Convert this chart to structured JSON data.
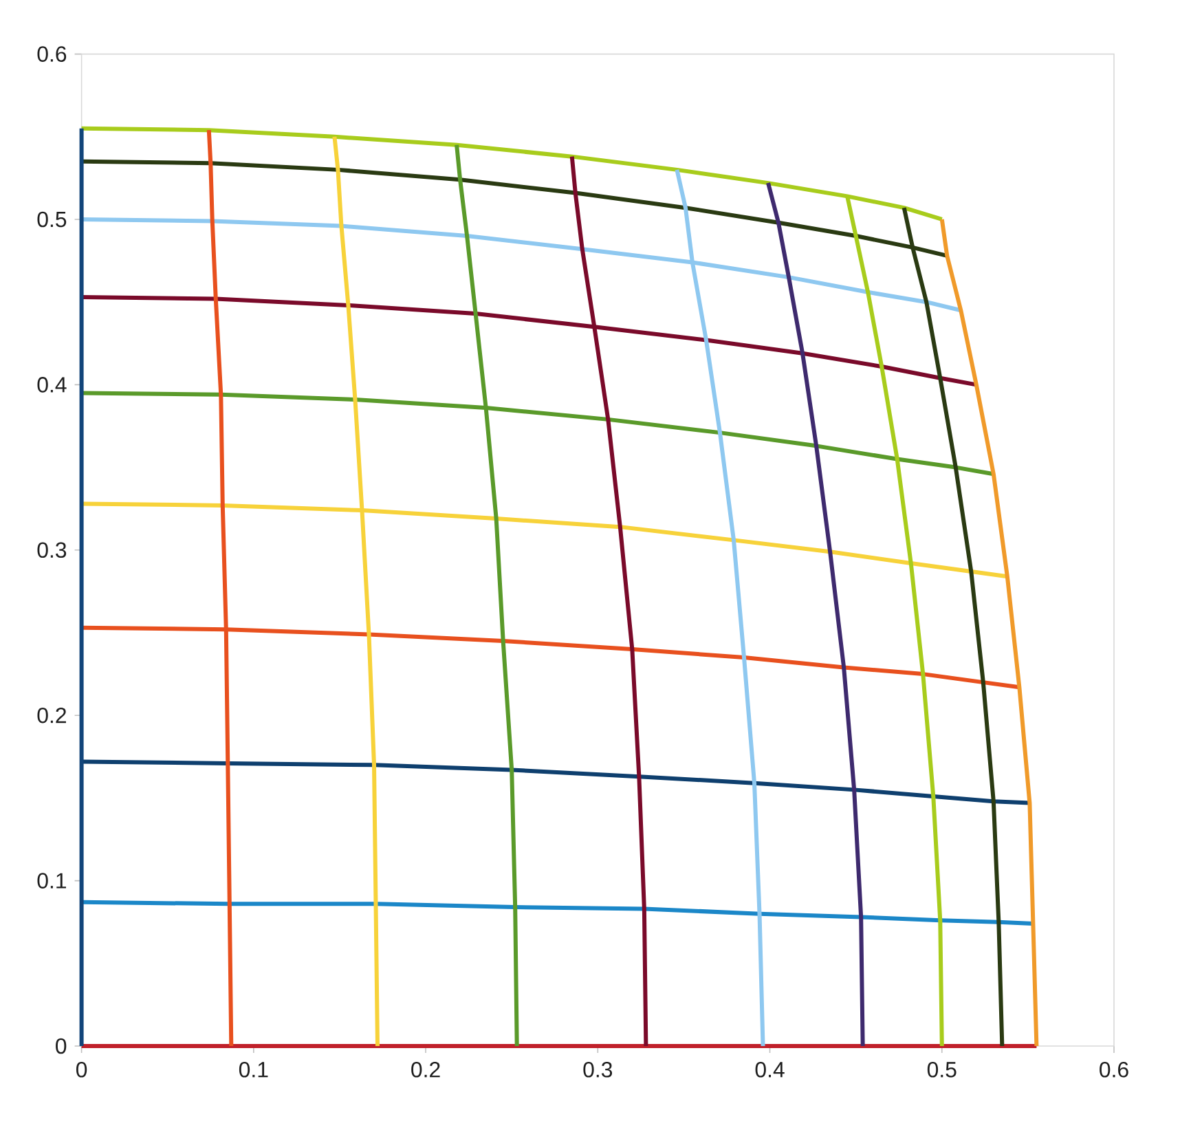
{
  "chart_data": {
    "type": "line",
    "xlim": [
      0,
      0.6
    ],
    "ylim": [
      0,
      0.6
    ],
    "xticks": [
      0,
      0.1,
      0.2,
      0.3,
      0.4,
      0.5,
      0.6
    ],
    "yticks": [
      0,
      0.1,
      0.2,
      0.3,
      0.4,
      0.5,
      0.6
    ],
    "series": [
      {
        "color": "#c0202a",
        "x": [
          0,
          0.087,
          0.172,
          0.253,
          0.328,
          0.396,
          0.454,
          0.5,
          0.535,
          0.555
        ],
        "values": [
          0,
          0,
          0,
          0,
          0,
          0,
          0,
          0,
          0,
          0
        ]
      },
      {
        "color": "#1b87c8",
        "x": [
          0,
          0.086,
          0.171,
          0.252,
          0.327,
          0.394,
          0.453,
          0.499,
          0.533,
          0.553
        ],
        "values": [
          0.087,
          0.086,
          0.086,
          0.084,
          0.083,
          0.08,
          0.078,
          0.076,
          0.075,
          0.074
        ]
      },
      {
        "color": "#0e3f6e",
        "x": [
          0,
          0.085,
          0.17,
          0.25,
          0.324,
          0.391,
          0.449,
          0.495,
          0.53,
          0.551
        ],
        "values": [
          0.172,
          0.171,
          0.17,
          0.167,
          0.163,
          0.159,
          0.155,
          0.151,
          0.148,
          0.147
        ]
      },
      {
        "color": "#e8501e",
        "x": [
          0,
          0.084,
          0.167,
          0.245,
          0.32,
          0.385,
          0.443,
          0.489,
          0.524,
          0.545
        ],
        "values": [
          0.253,
          0.252,
          0.249,
          0.245,
          0.24,
          0.235,
          0.229,
          0.225,
          0.22,
          0.217
        ]
      },
      {
        "color": "#f7d23a",
        "x": [
          0,
          0.082,
          0.163,
          0.241,
          0.313,
          0.379,
          0.435,
          0.482,
          0.517,
          0.538
        ],
        "values": [
          0.328,
          0.327,
          0.324,
          0.319,
          0.314,
          0.306,
          0.299,
          0.292,
          0.287,
          0.284
        ]
      },
      {
        "color": "#5a9a2a",
        "x": [
          0,
          0.081,
          0.159,
          0.235,
          0.306,
          0.371,
          0.427,
          0.474,
          0.508,
          0.53
        ],
        "values": [
          0.395,
          0.394,
          0.391,
          0.386,
          0.379,
          0.371,
          0.363,
          0.355,
          0.35,
          0.346
        ]
      },
      {
        "color": "#7a0a2a",
        "x": [
          0,
          0.078,
          0.155,
          0.229,
          0.298,
          0.363,
          0.419,
          0.465,
          0.499,
          0.52
        ],
        "values": [
          0.453,
          0.452,
          0.448,
          0.443,
          0.435,
          0.427,
          0.419,
          0.411,
          0.404,
          0.4
        ]
      },
      {
        "color": "#8ec8f0",
        "x": [
          0,
          0.076,
          0.151,
          0.224,
          0.291,
          0.355,
          0.411,
          0.457,
          0.491,
          0.511
        ],
        "values": [
          0.5,
          0.499,
          0.496,
          0.49,
          0.482,
          0.474,
          0.465,
          0.456,
          0.45,
          0.445
        ]
      },
      {
        "color": "#2a3a12",
        "x": [
          0,
          0.075,
          0.149,
          0.22,
          0.287,
          0.351,
          0.405,
          0.45,
          0.483,
          0.503
        ],
        "values": [
          0.535,
          0.534,
          0.53,
          0.524,
          0.516,
          0.507,
          0.498,
          0.49,
          0.483,
          0.478
        ]
      },
      {
        "color": "#a8cc1c",
        "x": [
          0,
          0.074,
          0.147,
          0.218,
          0.285,
          0.346,
          0.399,
          0.445,
          0.478,
          0.5
        ],
        "values": [
          0.555,
          0.554,
          0.55,
          0.545,
          0.538,
          0.53,
          0.522,
          0.514,
          0.507,
          0.5
        ]
      },
      {
        "color": "#12457a",
        "x": [
          0,
          0,
          0,
          0,
          0,
          0,
          0,
          0,
          0,
          0
        ],
        "values": [
          0,
          0.087,
          0.172,
          0.253,
          0.328,
          0.395,
          0.453,
          0.5,
          0.535,
          0.555
        ]
      },
      {
        "color": "#e8501e",
        "x": [
          0.087,
          0.086,
          0.085,
          0.084,
          0.082,
          0.081,
          0.078,
          0.076,
          0.075,
          0.074
        ],
        "values": [
          0,
          0.086,
          0.171,
          0.252,
          0.327,
          0.394,
          0.452,
          0.499,
          0.534,
          0.554
        ]
      },
      {
        "color": "#f7d23a",
        "x": [
          0.172,
          0.171,
          0.17,
          0.167,
          0.163,
          0.159,
          0.155,
          0.151,
          0.149,
          0.147
        ],
        "values": [
          0,
          0.086,
          0.17,
          0.249,
          0.324,
          0.391,
          0.448,
          0.496,
          0.53,
          0.55
        ]
      },
      {
        "color": "#5a9a2a",
        "x": [
          0.253,
          0.252,
          0.25,
          0.245,
          0.241,
          0.235,
          0.229,
          0.224,
          0.22,
          0.218
        ],
        "values": [
          0,
          0.084,
          0.167,
          0.245,
          0.319,
          0.386,
          0.443,
          0.49,
          0.524,
          0.545
        ]
      },
      {
        "color": "#7a0a2a",
        "x": [
          0.328,
          0.327,
          0.324,
          0.32,
          0.313,
          0.306,
          0.298,
          0.291,
          0.287,
          0.285
        ],
        "values": [
          0,
          0.083,
          0.163,
          0.24,
          0.314,
          0.379,
          0.435,
          0.482,
          0.516,
          0.538
        ]
      },
      {
        "color": "#8ec8f0",
        "x": [
          0.396,
          0.394,
          0.391,
          0.385,
          0.379,
          0.371,
          0.363,
          0.355,
          0.351,
          0.346
        ],
        "values": [
          0,
          0.08,
          0.159,
          0.235,
          0.306,
          0.371,
          0.427,
          0.474,
          0.507,
          0.53
        ]
      },
      {
        "color": "#3e2a6e",
        "x": [
          0.454,
          0.453,
          0.449,
          0.443,
          0.435,
          0.427,
          0.419,
          0.411,
          0.405,
          0.399
        ],
        "values": [
          0,
          0.078,
          0.155,
          0.229,
          0.299,
          0.363,
          0.419,
          0.465,
          0.498,
          0.522
        ]
      },
      {
        "color": "#a8cc1c",
        "x": [
          0.5,
          0.499,
          0.495,
          0.489,
          0.482,
          0.474,
          0.465,
          0.457,
          0.45,
          0.445
        ],
        "values": [
          0,
          0.076,
          0.151,
          0.225,
          0.292,
          0.355,
          0.411,
          0.456,
          0.49,
          0.514
        ]
      },
      {
        "color": "#2a3a12",
        "x": [
          0.535,
          0.533,
          0.53,
          0.524,
          0.517,
          0.508,
          0.499,
          0.491,
          0.483,
          0.478
        ],
        "values": [
          0,
          0.075,
          0.148,
          0.22,
          0.287,
          0.35,
          0.404,
          0.45,
          0.483,
          0.507
        ]
      },
      {
        "color": "#f09a2a",
        "x": [
          0.555,
          0.553,
          0.551,
          0.545,
          0.538,
          0.53,
          0.52,
          0.511,
          0.503,
          0.5
        ],
        "values": [
          0,
          0.074,
          0.147,
          0.217,
          0.284,
          0.346,
          0.4,
          0.445,
          0.478,
          0.5
        ]
      }
    ]
  }
}
